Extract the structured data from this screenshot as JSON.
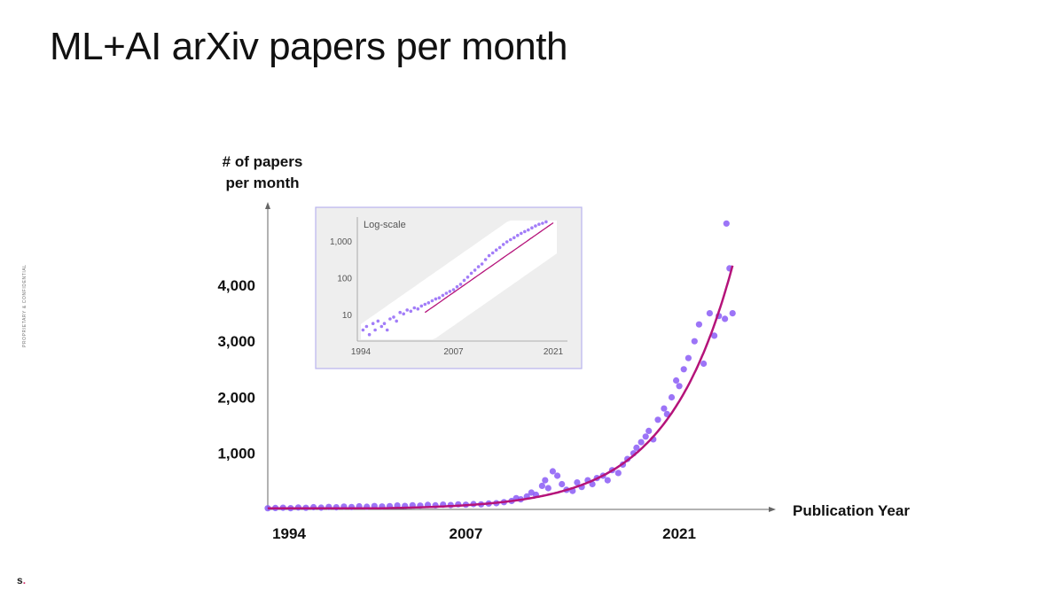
{
  "slide": {
    "title": "ML+AI arXiv papers per month",
    "side_note": "PROPRIETARY & CONFIDENTIAL",
    "logo_text": "s",
    "logo_dot": "."
  },
  "colors": {
    "points": "#8b5cf6",
    "fit_line": "#b5137a",
    "axis": "#666666",
    "inset_border": "#b9b3ee",
    "inset_bg": "#eeeeee",
    "inset_band": "#ffffff"
  },
  "chart_data": [
    {
      "type": "scatter",
      "title": "",
      "ylabel_lines": [
        "# of papers",
        "per month"
      ],
      "xlabel": "Publication Year",
      "x_ticks": [
        {
          "value": 1994,
          "label": "1994"
        },
        {
          "value": 2007,
          "label": "2007"
        },
        {
          "value": 2021,
          "label": "2021"
        }
      ],
      "y_ticks": [
        {
          "value": 1000,
          "label": "1,000"
        },
        {
          "value": 2000,
          "label": "2,000"
        },
        {
          "value": 3000,
          "label": "3,000"
        },
        {
          "value": 4000,
          "label": "4,000"
        }
      ],
      "xlim": [
        1994,
        2026
      ],
      "ylim": [
        0,
        5200
      ],
      "grid": false,
      "trend": {
        "type": "exponential",
        "anchors": [
          [
            2010,
            150
          ],
          [
            2024.5,
            4350
          ]
        ]
      },
      "series": [
        {
          "values_note_free": true,
          "points": [
            [
              1994,
              20
            ],
            [
              1994.5,
              25
            ],
            [
              1995,
              30
            ],
            [
              1995.5,
              22
            ],
            [
              1996,
              35
            ],
            [
              1996.5,
              28
            ],
            [
              1997,
              40
            ],
            [
              1997.5,
              32
            ],
            [
              1998,
              45
            ],
            [
              1998.5,
              38
            ],
            [
              1999,
              50
            ],
            [
              1999.5,
              42
            ],
            [
              2000,
              55
            ],
            [
              2000.5,
              48
            ],
            [
              2001,
              60
            ],
            [
              2001.5,
              52
            ],
            [
              2002,
              58
            ],
            [
              2002.5,
              70
            ],
            [
              2003,
              62
            ],
            [
              2003.5,
              75
            ],
            [
              2004,
              68
            ],
            [
              2004.5,
              80
            ],
            [
              2005,
              72
            ],
            [
              2005.5,
              85
            ],
            [
              2006,
              78
            ],
            [
              2006.5,
              90
            ],
            [
              2007,
              84
            ],
            [
              2007.5,
              95
            ],
            [
              2008,
              90
            ],
            [
              2008.5,
              105
            ],
            [
              2009,
              110
            ],
            [
              2009.5,
              130
            ],
            [
              2010,
              150
            ],
            [
              2010.3,
              200
            ],
            [
              2010.6,
              180
            ],
            [
              2011,
              230
            ],
            [
              2011.3,
              300
            ],
            [
              2011.6,
              260
            ],
            [
              2012,
              420
            ],
            [
              2012.2,
              520
            ],
            [
              2012.4,
              380
            ],
            [
              2012.7,
              680
            ],
            [
              2013,
              600
            ],
            [
              2013.3,
              450
            ],
            [
              2013.6,
              350
            ],
            [
              2014,
              330
            ],
            [
              2014.3,
              480
            ],
            [
              2014.6,
              400
            ],
            [
              2015,
              520
            ],
            [
              2015.3,
              450
            ],
            [
              2015.6,
              560
            ],
            [
              2016,
              600
            ],
            [
              2016.3,
              520
            ],
            [
              2016.6,
              700
            ],
            [
              2017,
              650
            ],
            [
              2017.3,
              800
            ],
            [
              2017.6,
              900
            ],
            [
              2018,
              1000
            ],
            [
              2018.2,
              1100
            ],
            [
              2018.5,
              1200
            ],
            [
              2018.8,
              1300
            ],
            [
              2019,
              1400
            ],
            [
              2019.3,
              1250
            ],
            [
              2019.6,
              1600
            ],
            [
              2020,
              1800
            ],
            [
              2020.2,
              1700
            ],
            [
              2020.5,
              2000
            ],
            [
              2020.8,
              2300
            ],
            [
              2021,
              2200
            ],
            [
              2021.3,
              2500
            ],
            [
              2021.6,
              2700
            ],
            [
              2022,
              3000
            ],
            [
              2022.3,
              3300
            ],
            [
              2022.6,
              2600
            ],
            [
              2023,
              3500
            ],
            [
              2023.3,
              3100
            ],
            [
              2023.6,
              3450
            ],
            [
              2024,
              3400
            ],
            [
              2024.3,
              4300
            ],
            [
              2024.5,
              3500
            ],
            [
              2024.1,
              5100
            ]
          ]
        }
      ]
    },
    {
      "type": "scatter",
      "title": "Log-scale",
      "y_scale": "log",
      "x_ticks": [
        {
          "value": 1994,
          "label": "1994"
        },
        {
          "value": 2007,
          "label": "2007"
        },
        {
          "value": 2021,
          "label": "2021"
        }
      ],
      "y_ticks": [
        {
          "value": 10,
          "label": "10"
        },
        {
          "value": 100,
          "label": "100"
        },
        {
          "value": 1000,
          "label": "1,000"
        }
      ],
      "xlim": [
        1994,
        2022
      ],
      "ylim": [
        2,
        4000
      ],
      "trend": {
        "type": "exponential",
        "anchors": [
          [
            2003,
            12
          ],
          [
            2021,
            3300
          ]
        ]
      },
      "series": [
        {
          "points": [
            [
              1994.3,
              4
            ],
            [
              1994.8,
              5
            ],
            [
              1995.2,
              3
            ],
            [
              1995.7,
              6
            ],
            [
              1996,
              4
            ],
            [
              1996.4,
              7
            ],
            [
              1996.9,
              5
            ],
            [
              1997.3,
              6
            ],
            [
              1997.7,
              4
            ],
            [
              1998.1,
              8
            ],
            [
              1998.6,
              9
            ],
            [
              1999,
              7
            ],
            [
              1999.5,
              12
            ],
            [
              2000,
              11
            ],
            [
              2000.5,
              14
            ],
            [
              2001,
              13
            ],
            [
              2001.5,
              16
            ],
            [
              2002,
              15
            ],
            [
              2002.5,
              18
            ],
            [
              2003,
              20
            ],
            [
              2003.5,
              22
            ],
            [
              2004,
              25
            ],
            [
              2004.5,
              28
            ],
            [
              2005,
              30
            ],
            [
              2005.5,
              35
            ],
            [
              2006,
              40
            ],
            [
              2006.5,
              45
            ],
            [
              2007,
              50
            ],
            [
              2007.5,
              60
            ],
            [
              2008,
              70
            ],
            [
              2008.5,
              90
            ],
            [
              2009,
              110
            ],
            [
              2009.5,
              140
            ],
            [
              2010,
              170
            ],
            [
              2010.5,
              210
            ],
            [
              2011,
              250
            ],
            [
              2011.5,
              330
            ],
            [
              2012,
              420
            ],
            [
              2012.5,
              500
            ],
            [
              2013,
              600
            ],
            [
              2013.5,
              700
            ],
            [
              2014,
              850
            ],
            [
              2014.5,
              1000
            ],
            [
              2015,
              1150
            ],
            [
              2015.5,
              1300
            ],
            [
              2016,
              1500
            ],
            [
              2016.5,
              1700
            ],
            [
              2017,
              1900
            ],
            [
              2017.5,
              2100
            ],
            [
              2018,
              2400
            ],
            [
              2018.5,
              2700
            ],
            [
              2019,
              3000
            ],
            [
              2019.5,
              3200
            ],
            [
              2020,
              3500
            ]
          ]
        }
      ]
    }
  ]
}
